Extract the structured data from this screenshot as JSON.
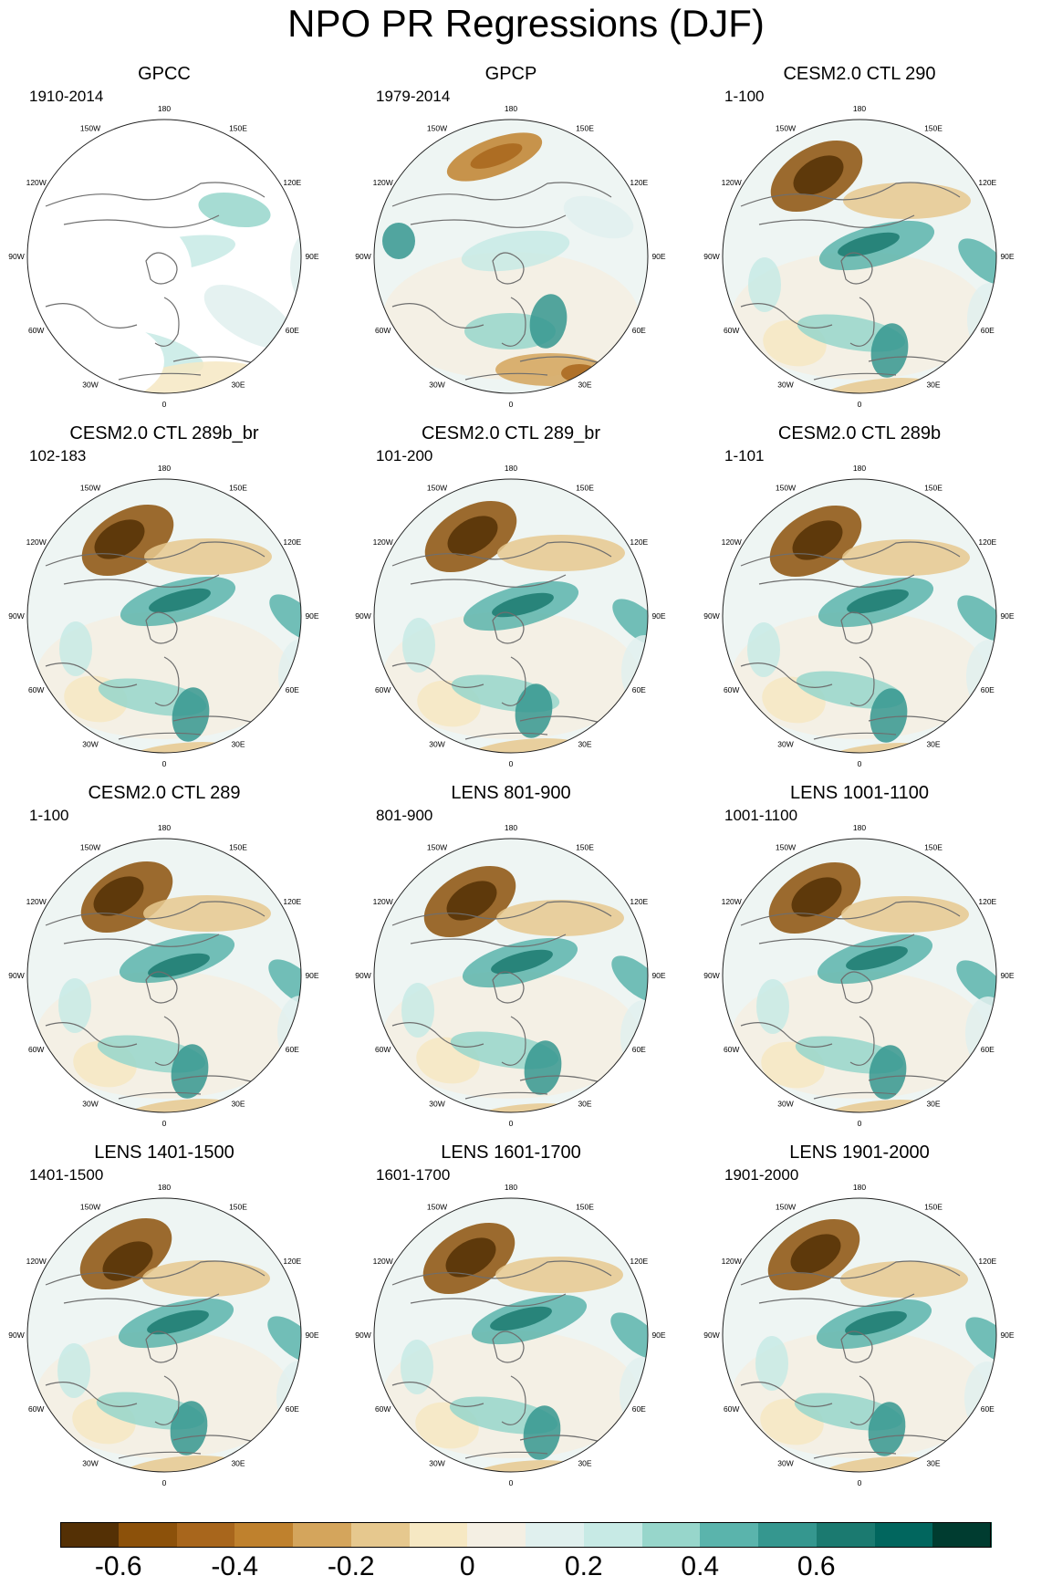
{
  "title": "NPO PR Regressions (DJF)",
  "lon_labels": [
    "180",
    "150E",
    "120E",
    "90E",
    "60E",
    "30E",
    "0",
    "30W",
    "60W",
    "90W",
    "120W",
    "150W"
  ],
  "panels": [
    {
      "title": "GPCC",
      "period": "1910-2014"
    },
    {
      "title": "GPCP",
      "period": "1979-2014"
    },
    {
      "title": "CESM2.0 CTL 290",
      "period": "1-100"
    },
    {
      "title": "CESM2.0 CTL 289b_br",
      "period": "102-183"
    },
    {
      "title": "CESM2.0 CTL 289_br",
      "period": "101-200"
    },
    {
      "title": "CESM2.0 CTL 289b",
      "period": "1-101"
    },
    {
      "title": "CESM2.0 CTL 289",
      "period": "1-100"
    },
    {
      "title": "LENS 801-900",
      "period": "801-900"
    },
    {
      "title": "LENS 1001-1100",
      "period": "1001-1100"
    },
    {
      "title": "LENS 1401-1500",
      "period": "1401-1500"
    },
    {
      "title": "LENS 1601-1700",
      "period": "1601-1700"
    },
    {
      "title": "LENS 1901-2000",
      "period": "1901-2000"
    }
  ],
  "colorbar": {
    "colors": [
      "#543005",
      "#8c510a",
      "#a8661c",
      "#bf812d",
      "#d4a55c",
      "#e6c88e",
      "#f6e8c3",
      "#f4efe3",
      "#e0f0ee",
      "#c7eae5",
      "#97d6cb",
      "#5ab4ac",
      "#35978f",
      "#1b7a70",
      "#01665e",
      "#003c30"
    ],
    "labels": [
      "-0.6",
      "-0.4",
      "-0.2",
      "0",
      "0.2",
      "0.4",
      "0.6"
    ]
  }
}
